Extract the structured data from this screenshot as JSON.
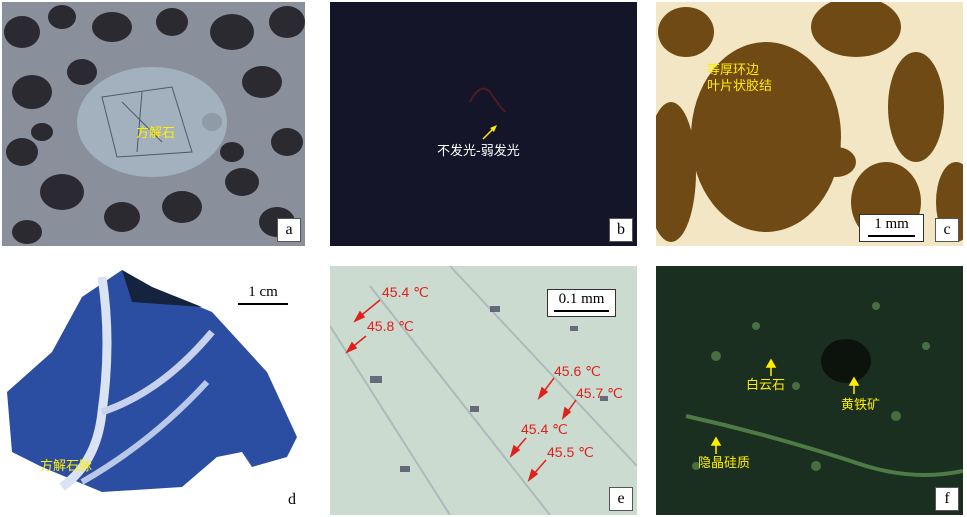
{
  "panels": {
    "a": {
      "tag": "a",
      "label": "方解石"
    },
    "b": {
      "tag": "b",
      "label": "不发光-弱发光"
    },
    "c": {
      "tag": "c",
      "label_line1": "等厚环边",
      "label_line2": "叶片状胶结",
      "scale": "1 mm"
    },
    "d": {
      "tag": "d",
      "label": "方解石脉",
      "scale": "1 cm"
    },
    "e": {
      "tag": "e",
      "scale": "0.1 mm",
      "temps": [
        "45.4 ℃",
        "45.8 ℃",
        "45.6 ℃",
        "45.7 ℃",
        "45.4 ℃",
        "45.5 ℃"
      ]
    },
    "f": {
      "tag": "f",
      "label1": "白云石",
      "label2": "黄铁矿",
      "label3": "隐晶硅质"
    }
  },
  "colors": {
    "label_yellow": "#ffee00",
    "temp_red": "#e0201c"
  }
}
